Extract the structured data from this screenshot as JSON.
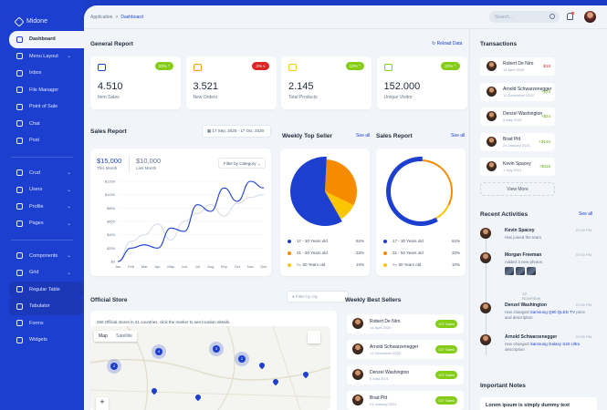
{
  "app": {
    "name": "Midone"
  },
  "sidebar": {
    "group1": [
      {
        "label": "Dashboard",
        "active": true
      },
      {
        "label": "Menu Layout",
        "chev": true
      },
      {
        "label": "Inbox"
      },
      {
        "label": "File Manager"
      },
      {
        "label": "Point of Sale"
      },
      {
        "label": "Chat"
      },
      {
        "label": "Post"
      }
    ],
    "group2": [
      {
        "label": "Crud",
        "chev": true
      },
      {
        "label": "Users",
        "chev": true
      },
      {
        "label": "Profile",
        "chev": true
      },
      {
        "label": "Pages",
        "chev": true
      }
    ],
    "group3": [
      {
        "label": "Components",
        "chev": true
      },
      {
        "label": "Grid",
        "chev": true
      },
      {
        "label": "Regular Table",
        "sub": true
      },
      {
        "label": "Tabulator",
        "sub": true
      },
      {
        "label": "Forms"
      },
      {
        "label": "Widgets"
      }
    ]
  },
  "breadcrumb": {
    "root": "Application",
    "sep": ">",
    "current": "Dashboard"
  },
  "search": {
    "placeholder": "Search..."
  },
  "general_report": {
    "title": "General Report",
    "reload": "Reload Data",
    "stats": [
      {
        "value": "4.510",
        "label": "Item Sales",
        "badge": "33% ^",
        "badge_color": "#84cc16",
        "icon": "shopping-cart-icon",
        "icon_color": "#1c3fcf"
      },
      {
        "value": "3.521",
        "label": "New Orders",
        "badge": "2% v",
        "badge_color": "#dc2626",
        "icon": "credit-card-icon",
        "icon_color": "#f59e0b"
      },
      {
        "value": "2.145",
        "label": "Total Products",
        "badge": "12% ^",
        "badge_color": "#84cc16",
        "icon": "monitor-icon",
        "icon_color": "#facc15"
      },
      {
        "value": "152.000",
        "label": "Unique Visitor",
        "badge": "22% ^",
        "badge_color": "#84cc16",
        "icon": "user-icon",
        "icon_color": "#84cc16"
      }
    ]
  },
  "sales_report": {
    "title": "Sales Report",
    "date_range": "17 Sep, 2020 - 17 Oct, 2020",
    "this_month_value": "$15,000",
    "this_month_label": "This Month",
    "last_month_value": "$10,000",
    "last_month_label": "Last Month",
    "filter": "Filter by Category"
  },
  "chart_data": [
    {
      "type": "line",
      "x": [
        "Jan",
        "Feb",
        "Mar",
        "Apr",
        "May",
        "Jun",
        "Jul",
        "Aug",
        "Sep",
        "Oct",
        "Nov",
        "Dec"
      ],
      "y_ticks": [
        "$1200",
        "$1000",
        "$800",
        "$600",
        "$400",
        "$200",
        "$0"
      ],
      "ylim": [
        0,
        1200
      ],
      "series": [
        {
          "values": [
            0,
            200,
            250,
            200,
            500,
            450,
            850,
            750,
            1100,
            900,
            1200,
            1100
          ],
          "color": "#1c3fcf"
        },
        {
          "values": [
            0,
            300,
            400,
            560,
            320,
            600,
            720,
            850,
            680,
            870,
            960,
            1000
          ],
          "color": "#cbd5e1"
        }
      ]
    },
    {
      "type": "pie",
      "title": "Weekly Top Seller",
      "slices": [
        {
          "label": "17 - 30 Years old",
          "value": 62,
          "pct": "62%",
          "color": "#1c3fcf"
        },
        {
          "label": "31 - 50 Years old",
          "value": 33,
          "pct": "33%",
          "color": "#f78b00"
        },
        {
          "label": ">= 50 Years old",
          "value": 10,
          "pct": "10%",
          "color": "#fbc500"
        }
      ]
    },
    {
      "type": "pie",
      "title": "Sales Report",
      "slices": [
        {
          "label": "17 - 30 Years old",
          "value": 62,
          "pct": "62%",
          "color": "#1c3fcf"
        },
        {
          "label": "31 - 50 Years old",
          "value": 33,
          "pct": "33%",
          "color": "#f78b00"
        },
        {
          "label": ">= 50 Years old",
          "value": 10,
          "pct": "10%",
          "color": "#fbc500"
        }
      ]
    }
  ],
  "see_all": "See all",
  "official_store": {
    "title": "Official Store",
    "filter_placeholder": "Filter by city",
    "desc": "250 Official stores in 21 countries, click the marker to see location details.",
    "map_tab": "Map",
    "satellite_tab": "Satellite",
    "cluster_labels": [
      "2",
      "4",
      "3",
      "2"
    ]
  },
  "weekly_best_sellers": {
    "title": "Weekly Best Sellers",
    "items": [
      {
        "name": "Robert De Niro",
        "date": "14 April 2020",
        "tag": "137 Sales"
      },
      {
        "name": "Arnold Schwarzenegger",
        "date": "12 December 2022",
        "tag": "137 Sales"
      },
      {
        "name": "Denzel Washington",
        "date": "5 May 2021",
        "tag": "137 Sales"
      },
      {
        "name": "Brad Pitt",
        "date": "21 January 2021",
        "tag": "137 Sales"
      }
    ]
  },
  "transactions": {
    "title": "Transactions",
    "items": [
      {
        "name": "Robert De Niro",
        "date": "14 April 2020",
        "amount": "-$18",
        "color": "#dc2626"
      },
      {
        "name": "Arnold Schwarzenegger",
        "date": "12 December 2022",
        "amount": "+$73",
        "color": "#65a30d"
      },
      {
        "name": "Denzel Washington",
        "date": "5 May 2021",
        "amount": "+$24",
        "color": "#65a30d"
      },
      {
        "name": "Brad Pitt",
        "date": "21 January 2021",
        "amount": "+$140",
        "color": "#65a30d"
      },
      {
        "name": "Kevin Spacey",
        "date": "1 July 2021",
        "amount": "+$116",
        "color": "#65a30d"
      }
    ],
    "view_more": "View More"
  },
  "recent_activities": {
    "title": "Recent Activities",
    "show_more": "See all",
    "items": [
      {
        "name": "Kevin Spacey",
        "time": "07:00 PM",
        "desc": "Has joined the team"
      },
      {
        "name": "Morgan Freeman",
        "time": "07:00 PM",
        "desc": "Added 3 new photos"
      },
      {
        "name": "Denzel Washington",
        "time": "07:00 PM",
        "desc_prefix": "Has changed ",
        "desc_link": "Samsung Q90 QLED TV",
        "desc_suffix": " price and description"
      },
      {
        "name": "Arnold Schwarzenegger",
        "time": "07:00 PM",
        "desc_prefix": "Has changed ",
        "desc_link": "Samsung Galaxy S20 Ultra",
        "desc_suffix": " description"
      }
    ],
    "divider": "12 November"
  },
  "important_notes": {
    "title": "Important Notes",
    "note_title": "Lorem ipsum is simply dummy text"
  }
}
